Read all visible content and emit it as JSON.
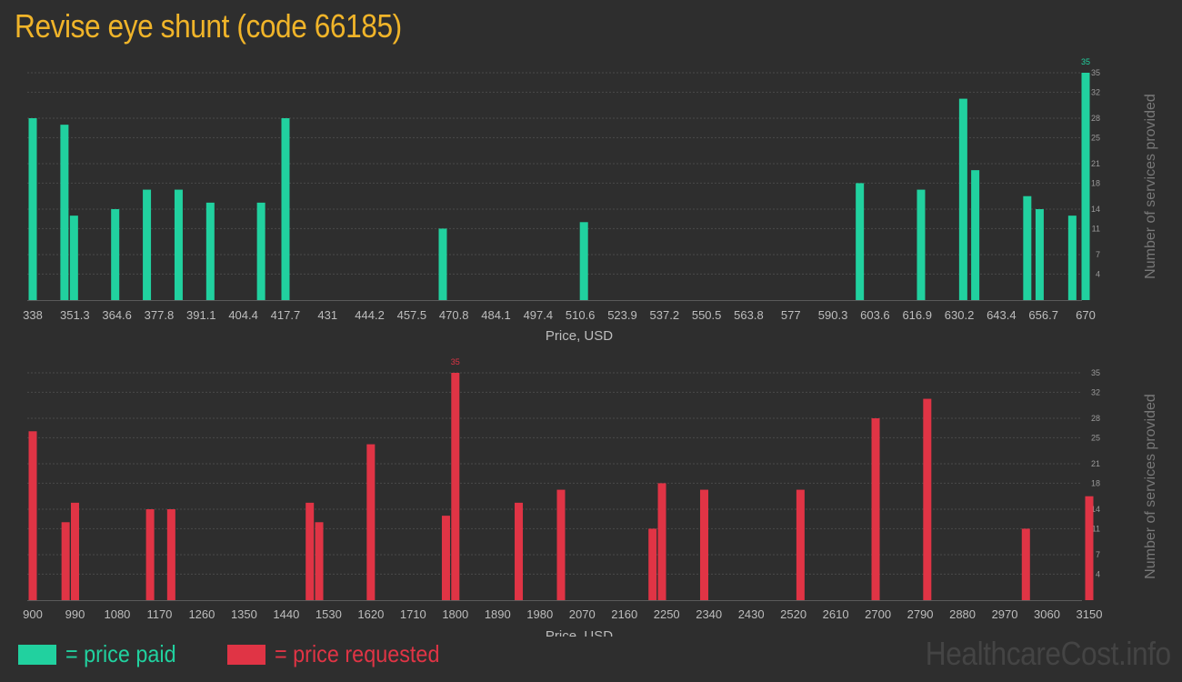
{
  "title": "Revise eye shunt (code 66185)",
  "watermark": "HealthcareCost.info",
  "legend": {
    "paid_label": "= price paid",
    "requested_label": "= price requested",
    "paid_color": "#21d19f",
    "requested_color": "#e03445"
  },
  "chart_data": [
    {
      "type": "bar",
      "name": "price paid",
      "color": "#21d19f",
      "xlabel": "Price, USD",
      "ylabel": "Number of services provided",
      "xlim": [
        338,
        670
      ],
      "ylim": [
        0,
        35
      ],
      "x_ticks": [
        "338",
        "351.3",
        "364.6",
        "377.8",
        "391.1",
        "404.4",
        "417.7",
        "431",
        "444.2",
        "457.5",
        "470.8",
        "484.1",
        "497.4",
        "510.6",
        "523.9",
        "537.2",
        "550.5",
        "563.8",
        "577",
        "590.3",
        "603.6",
        "616.9",
        "630.2",
        "643.4",
        "656.7",
        "670"
      ],
      "y_ticks": [
        4,
        7,
        11,
        14,
        18,
        21,
        25,
        28,
        32,
        35
      ],
      "max_label": "35",
      "x": [
        338,
        348,
        351,
        364,
        374,
        384,
        394,
        410,
        417.7,
        467.3,
        511.8,
        598.8,
        618.1,
        631.4,
        635.2,
        651.6,
        655.5,
        665.8,
        670
      ],
      "values": [
        28,
        27,
        13,
        14,
        17,
        17,
        15,
        15,
        28,
        11,
        12,
        18,
        17,
        31,
        20,
        16,
        14,
        13,
        35
      ]
    },
    {
      "type": "bar",
      "name": "price requested",
      "color": "#e03445",
      "xlabel": "Price, USD",
      "ylabel": "Number of services provided",
      "xlim": [
        900,
        3150
      ],
      "ylim": [
        0,
        35
      ],
      "x_ticks": [
        "900",
        "990",
        "1080",
        "1170",
        "1260",
        "1350",
        "1440",
        "1530",
        "1620",
        "1710",
        "1800",
        "1890",
        "1980",
        "2070",
        "2160",
        "2250",
        "2340",
        "2430",
        "2520",
        "2610",
        "2700",
        "2790",
        "2880",
        "2970",
        "3060",
        "3150"
      ],
      "y_ticks": [
        4,
        7,
        11,
        14,
        18,
        21,
        25,
        28,
        32,
        35
      ],
      "max_label": "35",
      "x": [
        900,
        970,
        990,
        1150,
        1195,
        1490,
        1510,
        1620,
        1780,
        1800,
        1935,
        2025,
        2220,
        2240,
        2330,
        2535,
        2695,
        2805,
        3015,
        3150
      ],
      "values": [
        26,
        12,
        15,
        14,
        14,
        15,
        12,
        24,
        13,
        35,
        15,
        17,
        11,
        18,
        17,
        17,
        28,
        31,
        11,
        16
      ]
    }
  ]
}
